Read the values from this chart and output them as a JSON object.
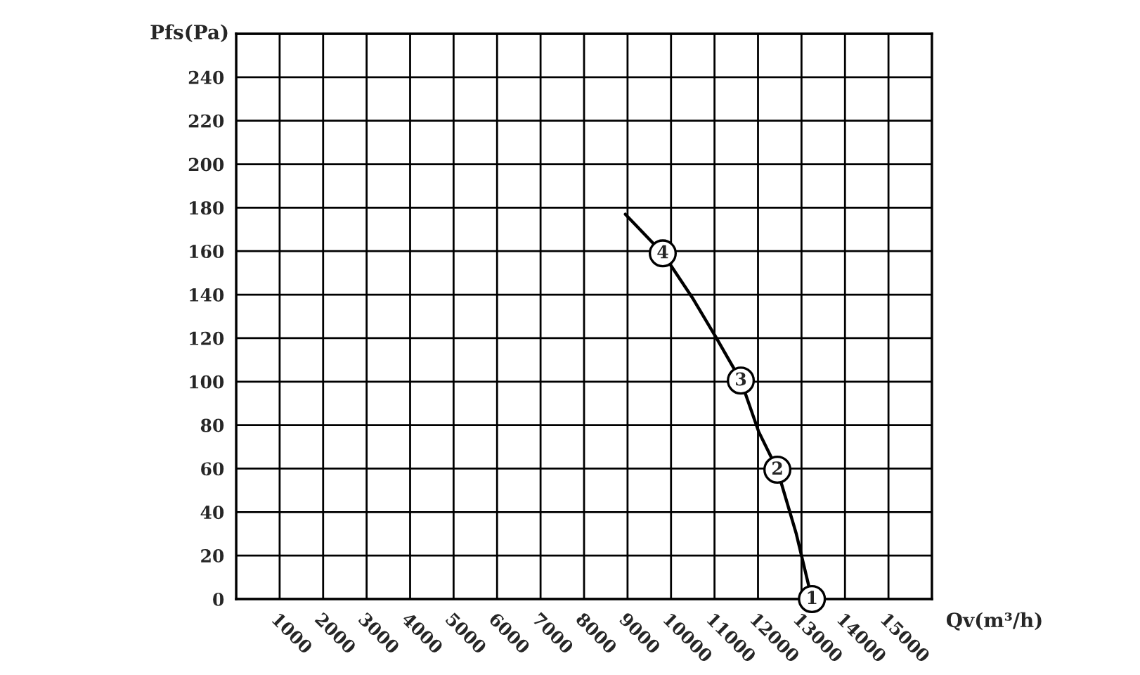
{
  "chart_data": {
    "type": "line",
    "xlabel": "Qv(m³/h)",
    "ylabel": "Pfs(Pa)",
    "series": [
      {
        "color": "#000000",
        "x": [
          8950,
          9810,
          10510,
          11045,
          11605,
          12015,
          12445,
          12880,
          13240
        ],
        "values": [
          177,
          159,
          138,
          120,
          100.5,
          77,
          59.5,
          30,
          0
        ]
      }
    ],
    "xlim": [
      0,
      16000
    ],
    "xticks": [
      {
        "value": 0,
        "label": null
      },
      1000,
      2000,
      3000,
      4000,
      5000,
      6000,
      7000,
      8000,
      9000,
      10000,
      11000,
      12000,
      13000,
      14000,
      15000,
      {
        "value": 16000,
        "label": null
      }
    ],
    "ylim": [
      0,
      260
    ],
    "yticks": [
      0,
      20,
      40,
      60,
      80,
      100,
      120,
      140,
      160,
      180,
      200,
      220,
      240,
      {
        "value": 260,
        "label": null
      }
    ],
    "grid": true,
    "marker": "none",
    "line_style": "solid",
    "annotations": [
      {
        "text": "1",
        "x": 13240,
        "y": 0
      },
      {
        "text": "2",
        "x": 12445,
        "y": 59.5
      },
      {
        "text": "3",
        "x": 11605,
        "y": 100.5
      },
      {
        "text": "4",
        "x": 9810,
        "y": 159
      }
    ]
  }
}
